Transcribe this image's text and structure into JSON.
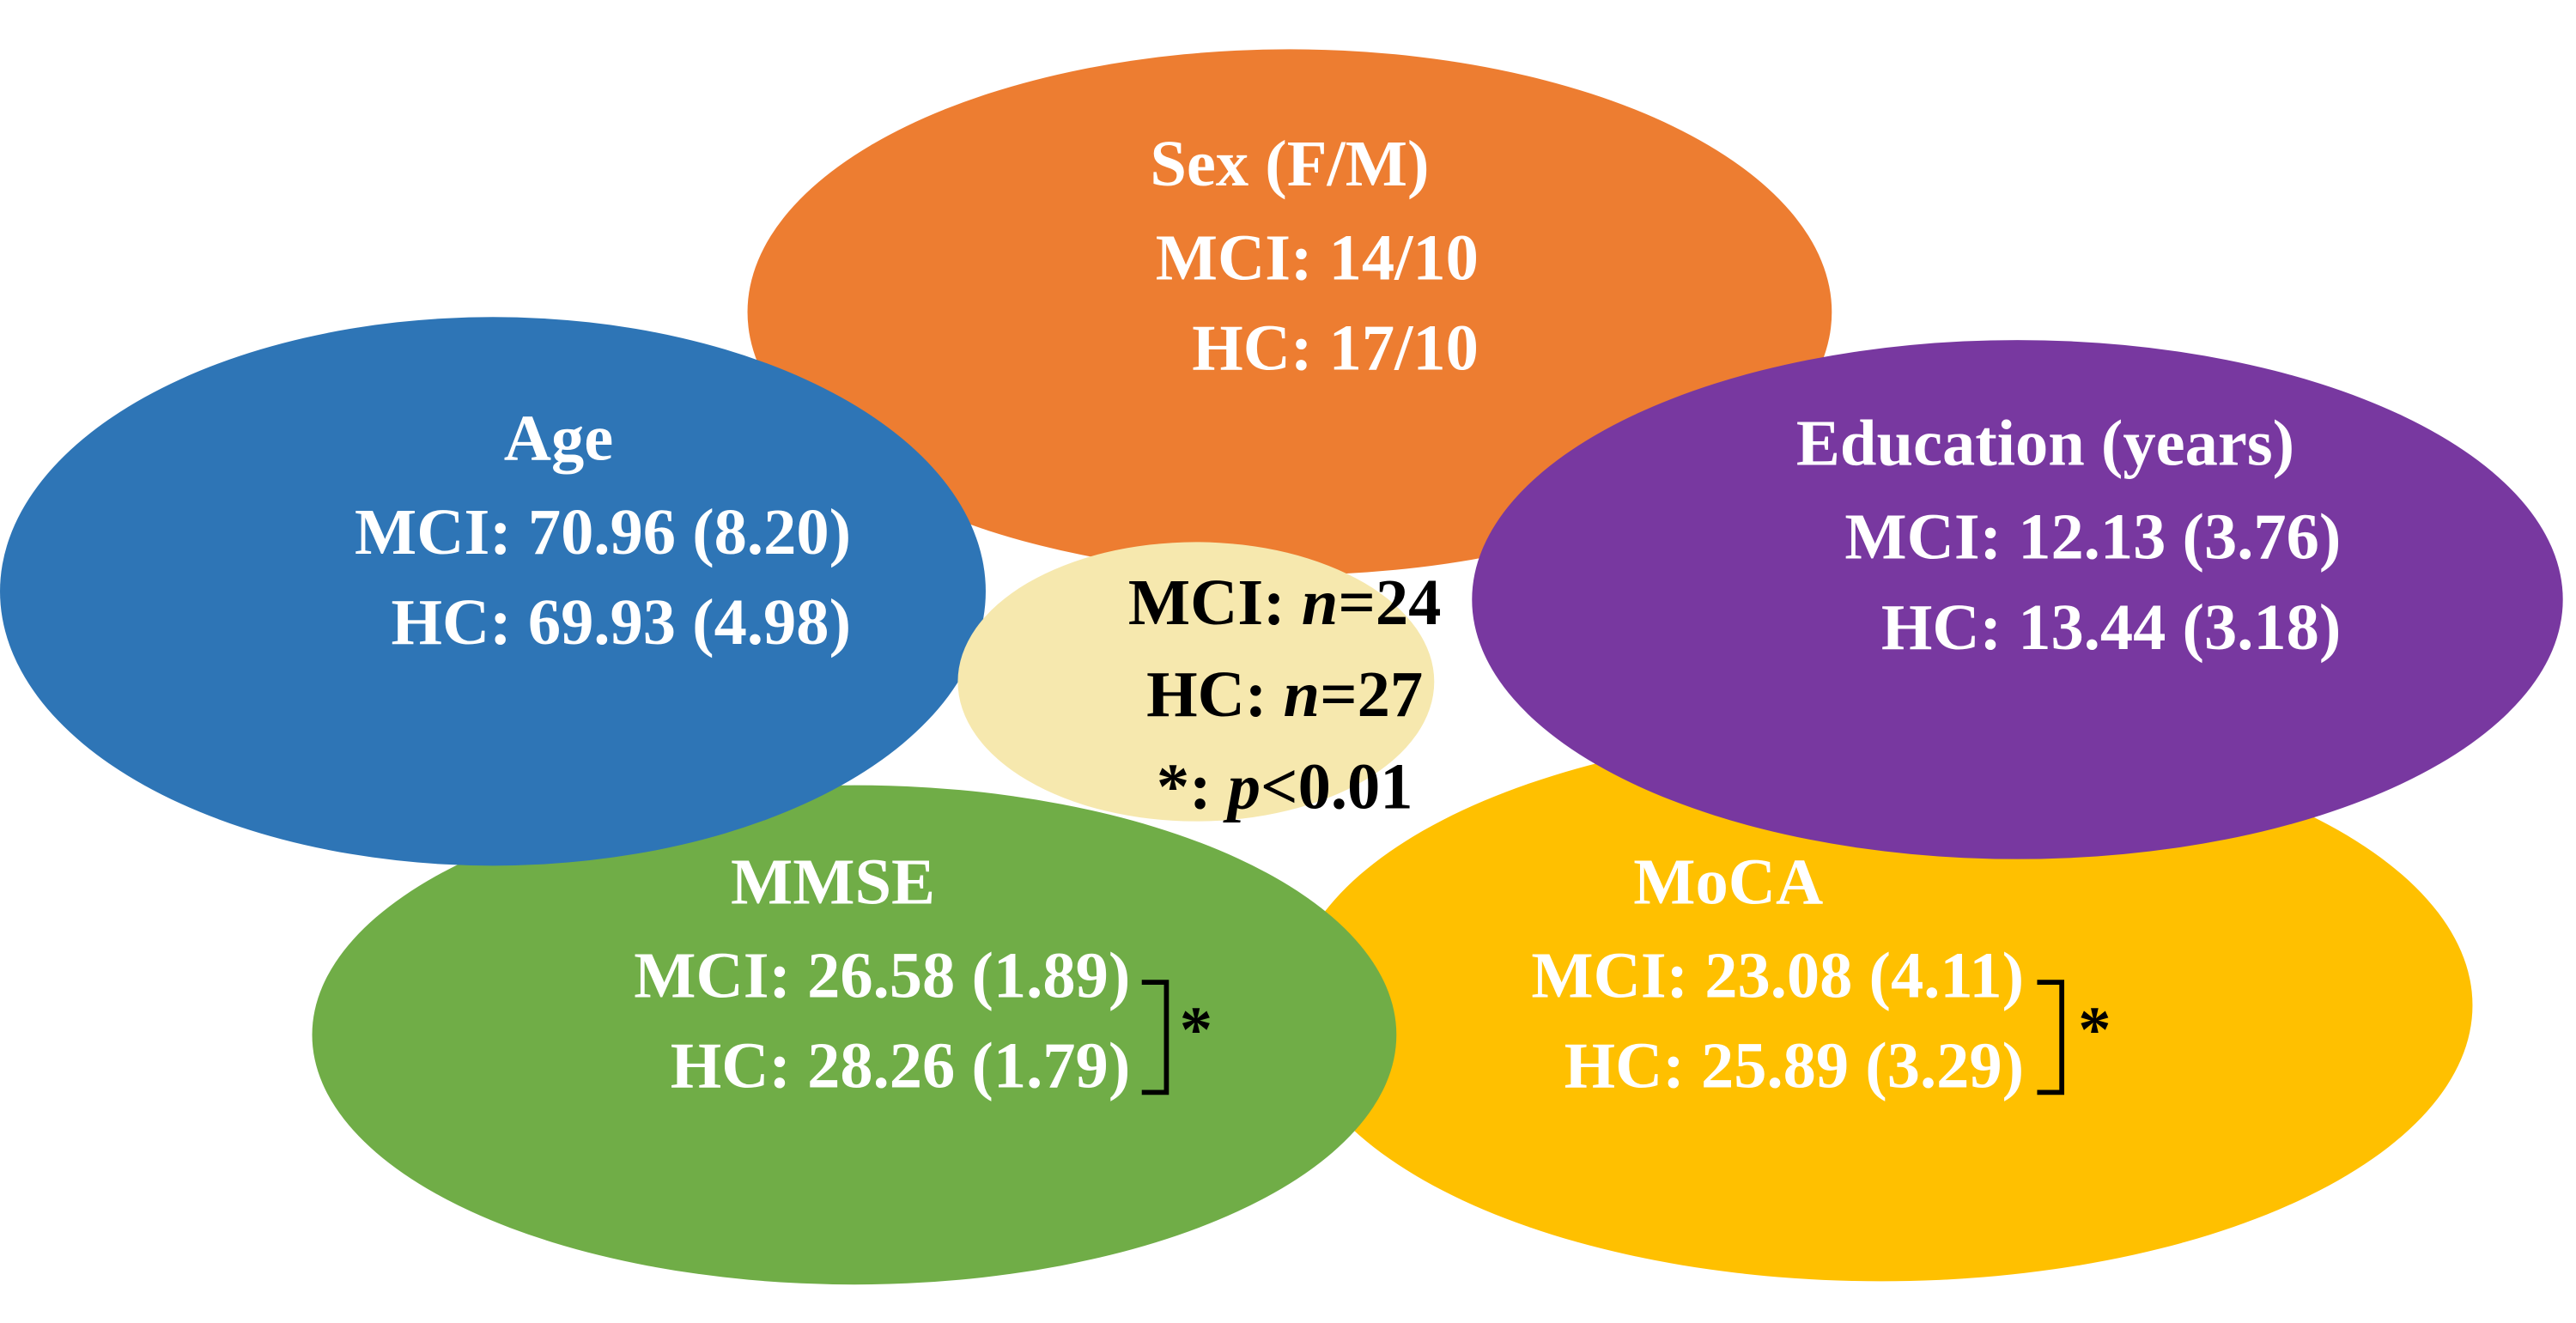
{
  "petals": [
    {
      "title": "Sex (F/M)",
      "lines": [
        "MCI: 14/10",
        "HC: 17/10"
      ]
    },
    {
      "title": "Age",
      "lines": [
        "MCI: 70.96 (8.20)",
        "HC: 69.93 (4.98)"
      ]
    },
    {
      "title": "Education (years)",
      "lines": [
        "MCI: 12.13 (3.76)",
        "HC: 13.44 (3.18)"
      ]
    },
    {
      "title": "MMSE",
      "lines": [
        "MCI: 26.58 (1.89)",
        "HC: 28.26 (1.79)"
      ],
      "significance": "*"
    },
    {
      "title": "MoCA",
      "lines": [
        "MCI: 23.08 (4.11)",
        "HC: 25.89 (3.29)"
      ],
      "significance": "*"
    }
  ],
  "center": {
    "lines": [
      [
        "MCI: ",
        "n",
        "=24"
      ],
      [
        "HC: ",
        "n",
        "=27"
      ],
      [
        "*: ",
        "p",
        "<0.01"
      ]
    ]
  }
}
